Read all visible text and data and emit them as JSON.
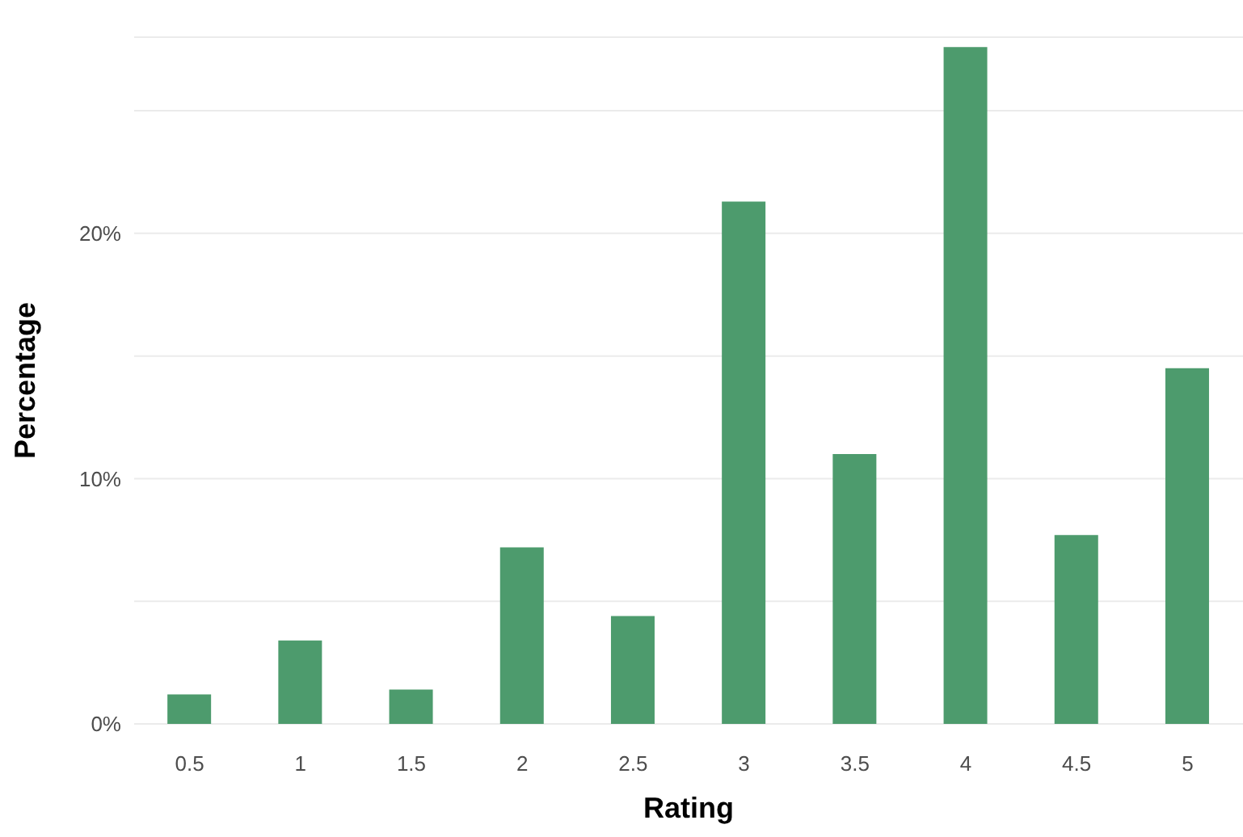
{
  "chart_data": {
    "type": "bar",
    "xlabel": "Rating",
    "ylabel": "Percentage",
    "categories": [
      "0.5",
      "1",
      "1.5",
      "2",
      "2.5",
      "3",
      "3.5",
      "4",
      "4.5",
      "5"
    ],
    "values": [
      1.2,
      3.4,
      1.4,
      7.2,
      4.4,
      21.3,
      11.0,
      27.6,
      7.7,
      14.5
    ],
    "color": "#4d9b6d",
    "ylim": [
      0,
      28
    ],
    "yticks": [
      {
        "value": 0,
        "label": "0%"
      },
      {
        "value": 5,
        "label": null
      },
      {
        "value": 10,
        "label": "10%"
      },
      {
        "value": 15,
        "label": null
      },
      {
        "value": 20,
        "label": "20%"
      },
      {
        "value": 25,
        "label": null
      }
    ],
    "grid": "y"
  }
}
